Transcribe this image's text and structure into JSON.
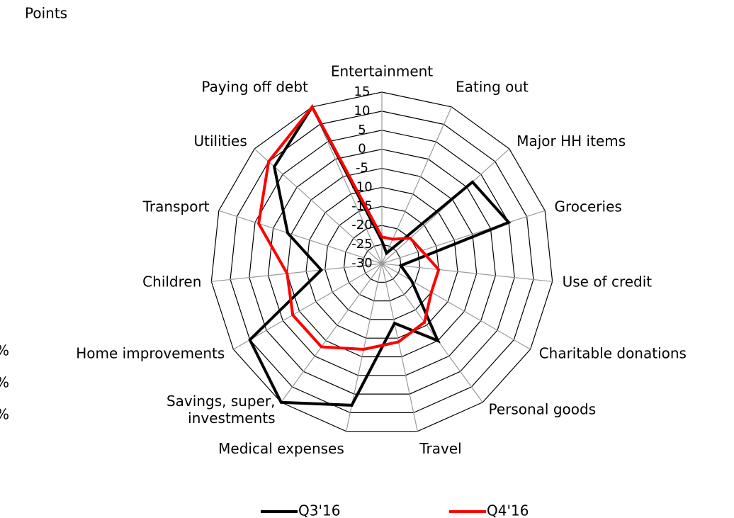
{
  "chart_data": {
    "type": "radar",
    "y_label": "Points",
    "categories": [
      "Entertainment",
      "Eating out",
      "Major HH items",
      "Groceries",
      "Use of credit",
      "Charitable donations",
      "Personal goods",
      "Travel",
      "Medical expenses",
      "Savings, super,\ninvestments",
      "Home improvements",
      "Children",
      "Transport",
      "Utilities",
      "Paying off debt"
    ],
    "series": [
      {
        "name": "Q3'16",
        "color": "#000000",
        "values": [
          -24,
          -27,
          2,
          5,
          -25,
          -21,
          -5,
          -14,
          8,
          15,
          10,
          -14,
          -4,
          8,
          15
        ]
      },
      {
        "name": "Q4'16",
        "color": "#ff0000",
        "values": [
          -23,
          -23,
          -20,
          -19,
          -15,
          -15,
          -11,
          -9,
          -7,
          -3,
          -3,
          -5,
          4,
          10,
          15
        ]
      }
    ],
    "ylim": [
      -30,
      15
    ],
    "yticks": [
      -30,
      -25,
      -20,
      -15,
      -10,
      -5,
      0,
      5,
      10,
      15
    ],
    "cutoff_labels": [
      "%",
      "%",
      "%"
    ]
  }
}
